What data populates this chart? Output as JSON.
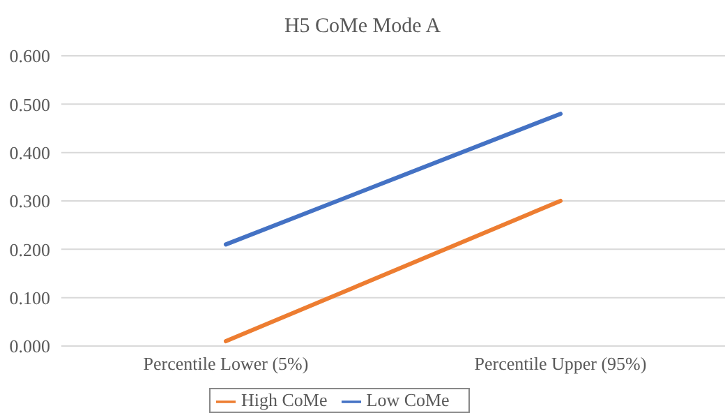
{
  "chart_data": {
    "type": "line",
    "title": "H5 CoMe Mode A",
    "categories": [
      "Percentile Lower (5%)",
      "Percentile Upper (95%)"
    ],
    "series": [
      {
        "name": "Low CoMe",
        "color": "#4472c4",
        "values": [
          0.21,
          0.48
        ]
      },
      {
        "name": "High CoMe",
        "color": "#ed7d31",
        "values": [
          0.01,
          0.3
        ]
      }
    ],
    "ylim": [
      0,
      0.6
    ],
    "yticks": [
      {
        "value": 0,
        "label": "0.000"
      },
      {
        "value": 0.1,
        "label": "0.100"
      },
      {
        "value": 0.2,
        "label": "0.200"
      },
      {
        "value": 0.3,
        "label": "0.300"
      },
      {
        "value": 0.4,
        "label": "0.400"
      },
      {
        "value": 0.5,
        "label": "0.500"
      },
      {
        "value": 0.6,
        "label": "0.600"
      }
    ],
    "grid": "y",
    "legend": "bottom",
    "marker": "none",
    "line_style": "solid"
  }
}
